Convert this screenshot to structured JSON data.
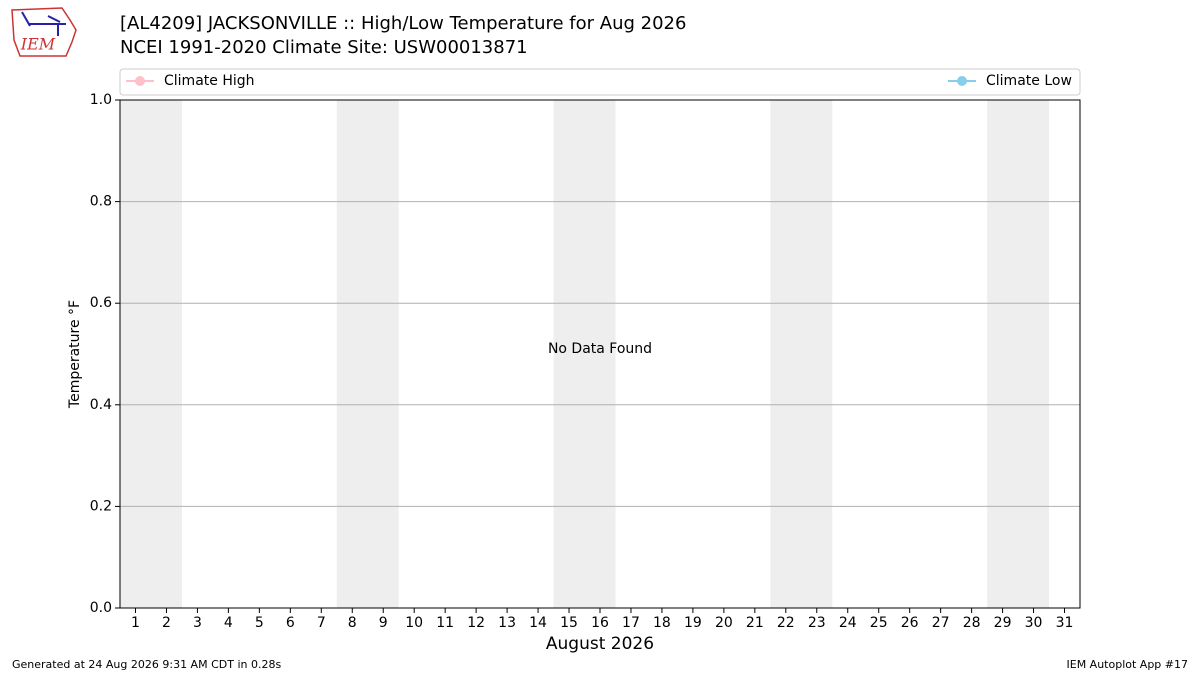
{
  "chart_data": {
    "type": "line",
    "title": "[AL4209] JACKSONVILLE :: High/Low Temperature for Aug 2026",
    "subtitle": "NCEI 1991-2020 Climate Site: USW00013871",
    "xlabel": "August 2026",
    "ylabel": "Temperature °F",
    "annotation": "No Data Found",
    "series": [
      {
        "name": "Climate High",
        "color": "#ffc0cb"
      },
      {
        "name": "Climate Low",
        "color": "#87ceeb"
      }
    ],
    "xlim": [
      0.5,
      31.5
    ],
    "xticks": [
      1,
      2,
      3,
      4,
      5,
      6,
      7,
      8,
      9,
      10,
      11,
      12,
      13,
      14,
      15,
      16,
      17,
      18,
      19,
      20,
      21,
      22,
      23,
      24,
      25,
      26,
      27,
      28,
      29,
      30,
      31
    ],
    "ylim": [
      0,
      1
    ],
    "yticks": [
      {
        "value": 0,
        "label": "0.0"
      },
      0.2,
      0.4,
      0.6,
      0.8,
      {
        "value": 1,
        "label": "1.0"
      }
    ],
    "grid": true,
    "weekend_shading": [
      [
        0.5,
        2.5
      ],
      [
        7.5,
        9.5
      ],
      [
        14.5,
        16.5
      ],
      [
        21.5,
        23.5
      ],
      [
        28.5,
        30.5
      ]
    ]
  },
  "logo": "IEM",
  "footer": {
    "left": "Generated at 24 Aug 2026 9:31 AM CDT in 0.28s",
    "right": "IEM Autoplot App #17"
  }
}
